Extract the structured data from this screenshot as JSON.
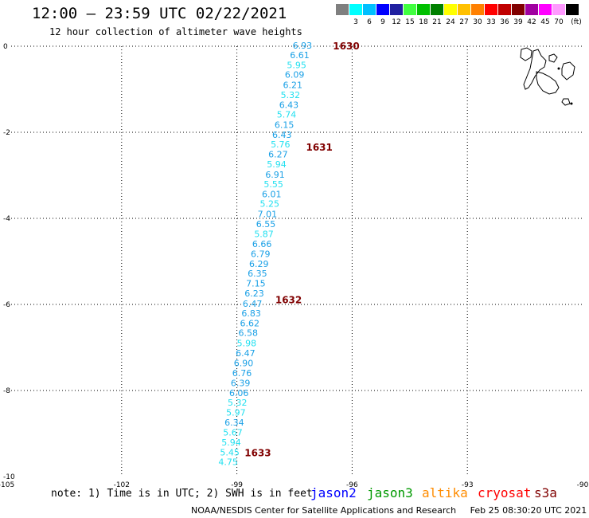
{
  "title": "12:00 – 23:59 UTC 02/22/2021",
  "subtitle": "12 hour collection of altimeter wave heights",
  "scale": {
    "unit_label": "(ft)",
    "bins": [
      {
        "label": "",
        "color": "#7f7f7f"
      },
      {
        "label": "3",
        "color": "#00ffff"
      },
      {
        "label": "6",
        "color": "#00bfff"
      },
      {
        "label": "9",
        "color": "#0000ff"
      },
      {
        "label": "12",
        "color": "#2020a0"
      },
      {
        "label": "15",
        "color": "#40ff40"
      },
      {
        "label": "18",
        "color": "#00c000"
      },
      {
        "label": "21",
        "color": "#008000"
      },
      {
        "label": "24",
        "color": "#ffff00"
      },
      {
        "label": "27",
        "color": "#ffc000"
      },
      {
        "label": "30",
        "color": "#ff8000"
      },
      {
        "label": "33",
        "color": "#ff0000"
      },
      {
        "label": "36",
        "color": "#c00000"
      },
      {
        "label": "39",
        "color": "#800000"
      },
      {
        "label": "42",
        "color": "#a000a0"
      },
      {
        "label": "45",
        "color": "#ff00ff"
      },
      {
        "label": "70",
        "color": "#ff99ff"
      },
      {
        "label": "",
        "color": "#000000"
      }
    ]
  },
  "map": {
    "lon_range": [
      -105,
      -90
    ],
    "lat_range": [
      -10,
      0
    ],
    "lon_ticks": [
      "-105",
      "-102",
      "-99",
      "-96",
      "-93",
      "-90"
    ],
    "lat_ticks": [
      "0",
      "-2",
      "-4",
      "-6",
      "-8",
      "-10"
    ]
  },
  "track": {
    "time_color": "#800000",
    "times": [
      {
        "label": "1630",
        "lon": -96.5,
        "lat": 0.0
      },
      {
        "label": "1631",
        "lon": -97.2,
        "lat": -2.35
      },
      {
        "label": "1632",
        "lon": -98.0,
        "lat": -5.9
      },
      {
        "label": "1633",
        "lon": -98.8,
        "lat": -9.45
      }
    ],
    "points": [
      {
        "v": "6.93",
        "lon": -97.55,
        "lat": 0.0
      },
      {
        "v": "6.61",
        "lon": -97.62,
        "lat": -0.22
      },
      {
        "v": "5.95",
        "lon": -97.7,
        "lat": -0.45
      },
      {
        "v": "6.09",
        "lon": -97.75,
        "lat": -0.68
      },
      {
        "v": "6.21",
        "lon": -97.8,
        "lat": -0.92
      },
      {
        "v": "5.32",
        "lon": -97.86,
        "lat": -1.15
      },
      {
        "v": "6.43",
        "lon": -97.9,
        "lat": -1.38
      },
      {
        "v": "5.74",
        "lon": -97.96,
        "lat": -1.6
      },
      {
        "v": "6.15",
        "lon": -98.02,
        "lat": -1.84
      },
      {
        "v": "6.43",
        "lon": -98.08,
        "lat": -2.07
      },
      {
        "v": "5.76",
        "lon": -98.12,
        "lat": -2.3
      },
      {
        "v": "6.27",
        "lon": -98.18,
        "lat": -2.53
      },
      {
        "v": "5.94",
        "lon": -98.22,
        "lat": -2.76
      },
      {
        "v": "6.91",
        "lon": -98.26,
        "lat": -3.0
      },
      {
        "v": "5.55",
        "lon": -98.3,
        "lat": -3.22
      },
      {
        "v": "6.01",
        "lon": -98.35,
        "lat": -3.45
      },
      {
        "v": "5.25",
        "lon": -98.4,
        "lat": -3.68
      },
      {
        "v": "7.01",
        "lon": -98.46,
        "lat": -3.92
      },
      {
        "v": "6.55",
        "lon": -98.5,
        "lat": -4.15
      },
      {
        "v": "5.87",
        "lon": -98.55,
        "lat": -4.38
      },
      {
        "v": "6.66",
        "lon": -98.6,
        "lat": -4.61
      },
      {
        "v": "6.79",
        "lon": -98.64,
        "lat": -4.84
      },
      {
        "v": "6.29",
        "lon": -98.68,
        "lat": -5.07
      },
      {
        "v": "6.35",
        "lon": -98.72,
        "lat": -5.3
      },
      {
        "v": "7.15",
        "lon": -98.76,
        "lat": -5.53
      },
      {
        "v": "6.23",
        "lon": -98.8,
        "lat": -5.76
      },
      {
        "v": "6.47",
        "lon": -98.85,
        "lat": -6.0
      },
      {
        "v": "6.83",
        "lon": -98.88,
        "lat": -6.22
      },
      {
        "v": "6.62",
        "lon": -98.92,
        "lat": -6.45
      },
      {
        "v": "6.58",
        "lon": -98.96,
        "lat": -6.68
      },
      {
        "v": "5.98",
        "lon": -99.0,
        "lat": -6.92
      },
      {
        "v": "6.47",
        "lon": -99.03,
        "lat": -7.15
      },
      {
        "v": "6.90",
        "lon": -99.08,
        "lat": -7.38
      },
      {
        "v": "6.76",
        "lon": -99.12,
        "lat": -7.61
      },
      {
        "v": "6.39",
        "lon": -99.16,
        "lat": -7.84
      },
      {
        "v": "6.06",
        "lon": -99.2,
        "lat": -8.07
      },
      {
        "v": "5.32",
        "lon": -99.24,
        "lat": -8.3
      },
      {
        "v": "5.97",
        "lon": -99.28,
        "lat": -8.53
      },
      {
        "v": "6.34",
        "lon": -99.32,
        "lat": -8.76
      },
      {
        "v": "5.67",
        "lon": -99.36,
        "lat": -8.99
      },
      {
        "v": "5.94",
        "lon": -99.4,
        "lat": -9.22
      },
      {
        "v": "5.45",
        "lon": -99.44,
        "lat": -9.45
      },
      {
        "v": "4.75",
        "lon": -99.48,
        "lat": -9.68
      }
    ]
  },
  "note": "note: 1) Time is in UTC; 2) SWH is in feet",
  "satellites": [
    {
      "name": "jason2",
      "color": "#0000ff"
    },
    {
      "name": "jason3",
      "color": "#009900"
    },
    {
      "name": "altika",
      "color": "#ff8c00"
    },
    {
      "name": "cryosat",
      "color": "#ff0000"
    },
    {
      "name": "s3a",
      "color": "#800000"
    }
  ],
  "credit": "NOAA/NESDIS Center for Satellite Applications and Research",
  "timestamp": "Feb 25 08:30:20 UTC 2021"
}
